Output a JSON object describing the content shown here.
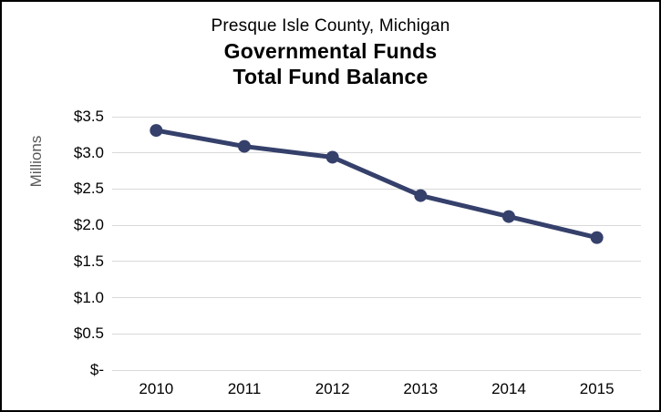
{
  "title": {
    "line1": "Presque Isle County, Michigan",
    "line2": "Governmental Funds",
    "line3": "Total Fund Balance"
  },
  "y_axis": {
    "label": "Millions",
    "ticks": [
      {
        "value": 3.5,
        "label": "$3.5"
      },
      {
        "value": 3.0,
        "label": "$3.0"
      },
      {
        "value": 2.5,
        "label": "$2.5"
      },
      {
        "value": 2.0,
        "label": "$2.0"
      },
      {
        "value": 1.5,
        "label": "$1.5"
      },
      {
        "value": 1.0,
        "label": "$1.0"
      },
      {
        "value": 0.5,
        "label": "$0.5"
      },
      {
        "value": 0.0,
        "label": "$-"
      }
    ]
  },
  "x_axis": {
    "categories": [
      "2010",
      "2011",
      "2012",
      "2013",
      "2014",
      "2015"
    ]
  },
  "chart_data": {
    "type": "line",
    "title": "Presque Isle County, Michigan — Governmental Funds — Total Fund Balance",
    "categories": [
      "2010",
      "2011",
      "2012",
      "2013",
      "2014",
      "2015"
    ],
    "series": [
      {
        "name": "Total Fund Balance",
        "values": [
          3.31,
          3.09,
          2.94,
          2.41,
          2.12,
          1.83
        ]
      }
    ],
    "xlabel": "",
    "ylabel": "Millions",
    "ylim": [
      0,
      3.5
    ],
    "y_tick_step": 0.5,
    "grid": true,
    "legend": false,
    "marker": "circle"
  },
  "colors": {
    "line": "#35406B",
    "grid": "#D9D9D9",
    "axis_title_text": "#595959",
    "tick_text": "#000000",
    "background": "#FFFFFF",
    "border": "#000000"
  }
}
